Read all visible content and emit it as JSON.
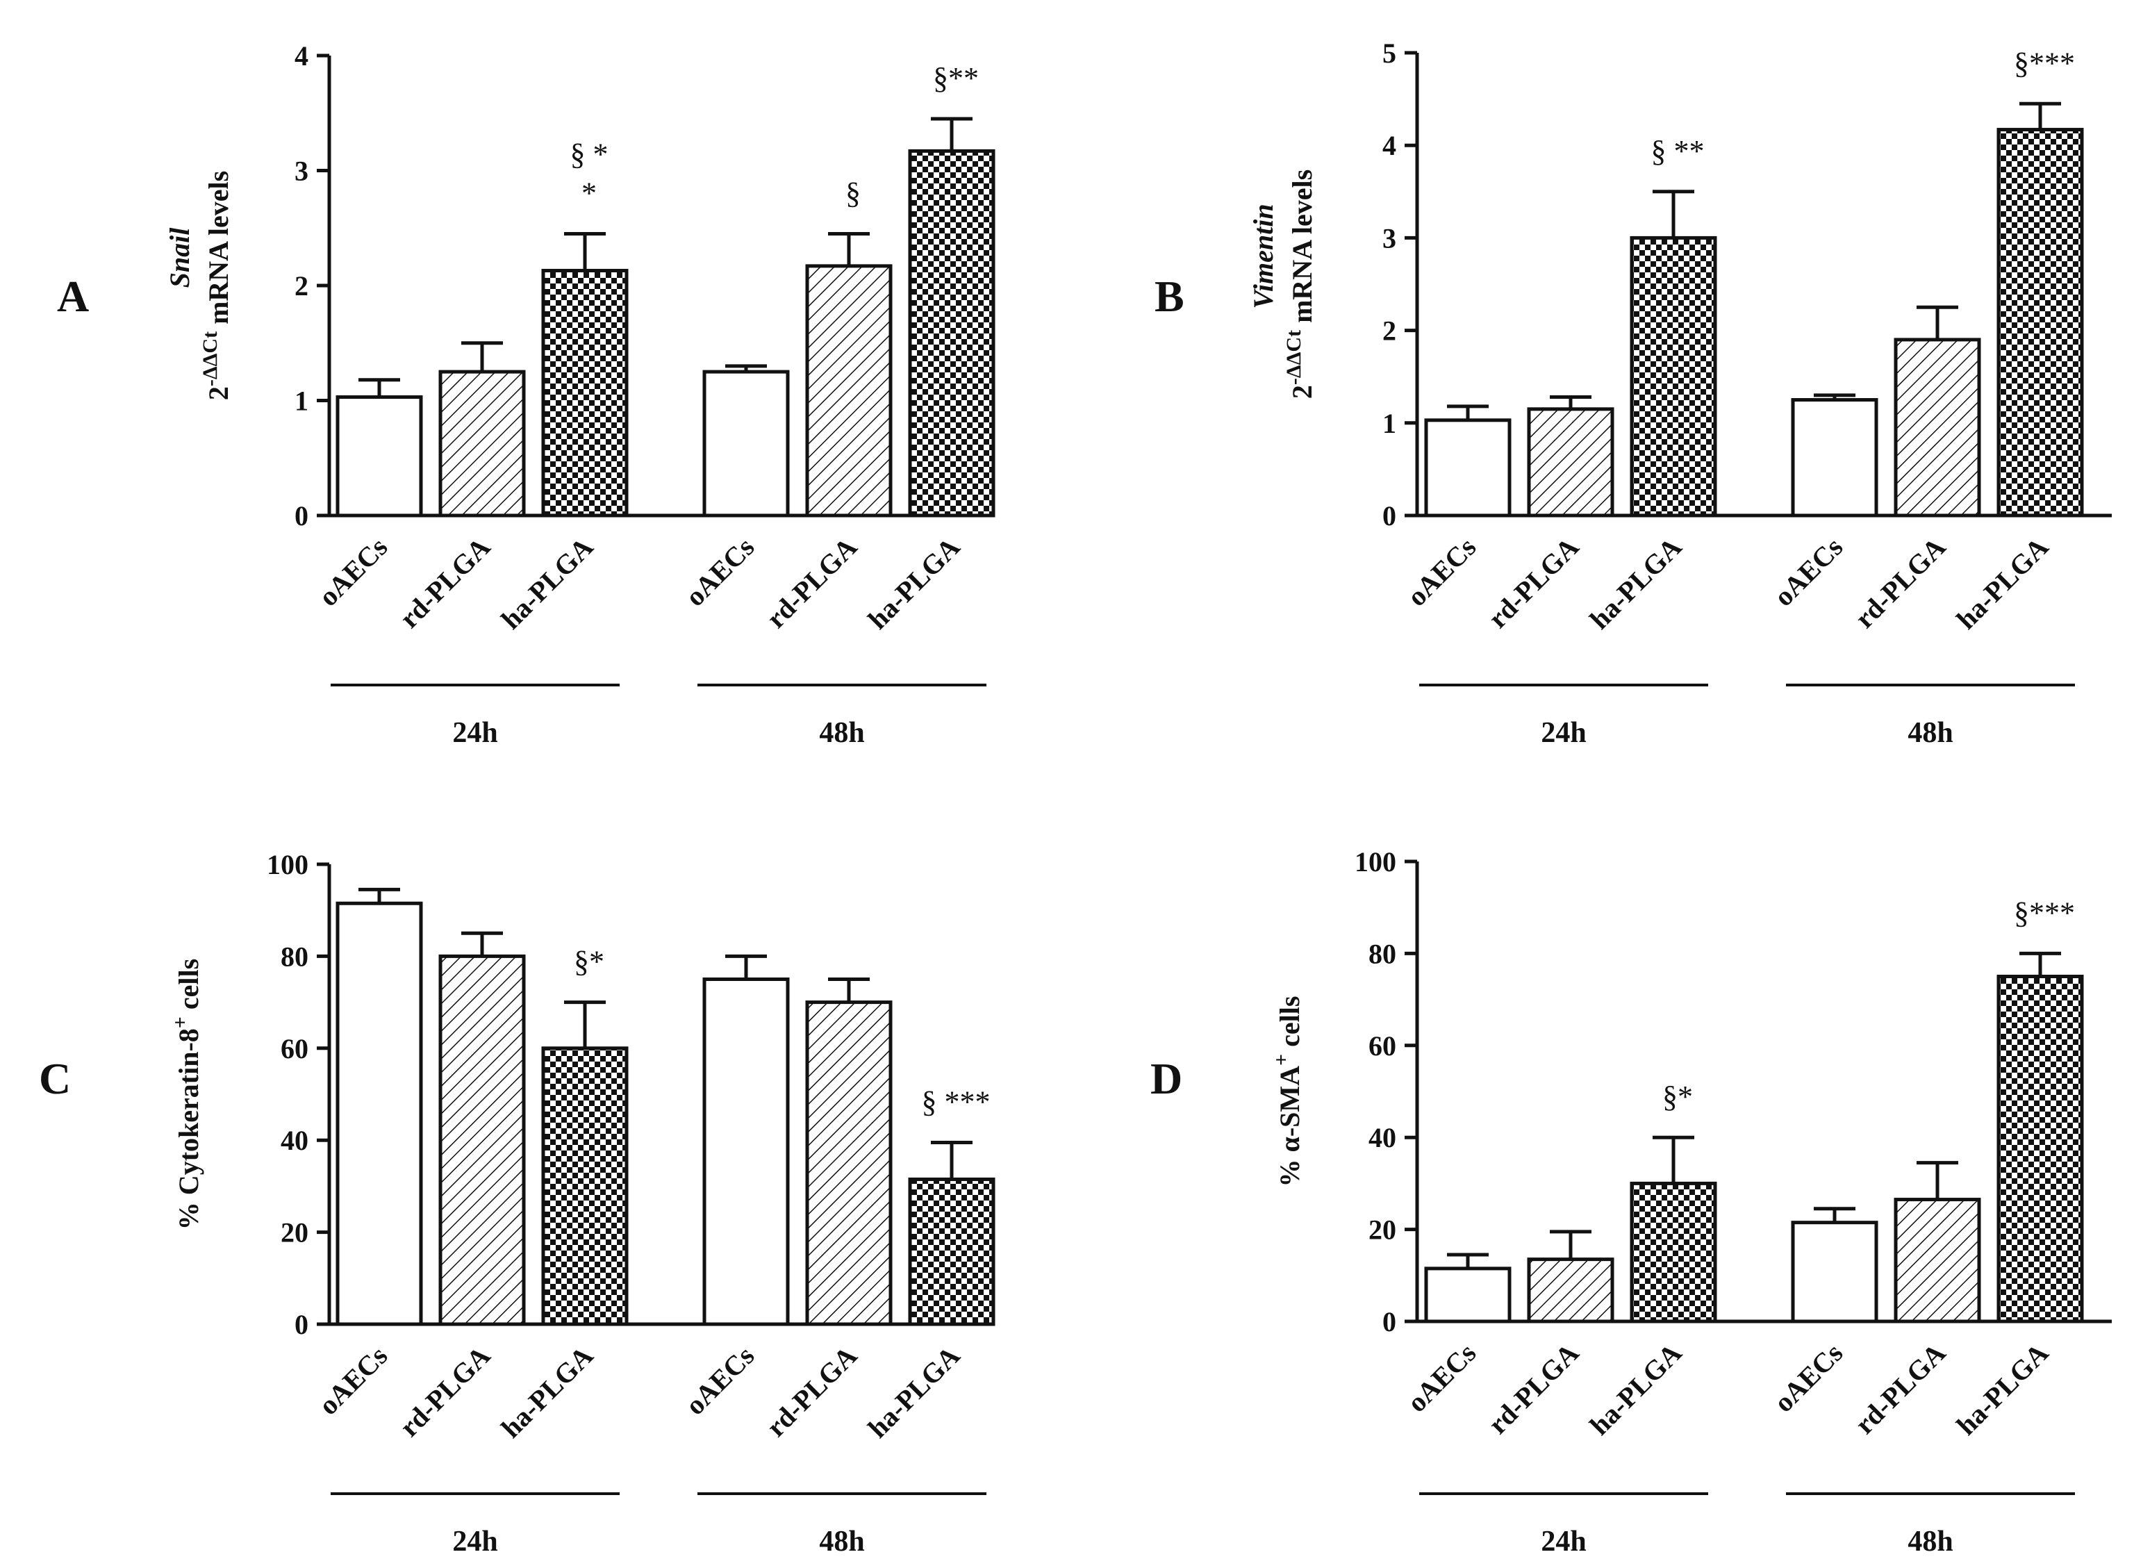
{
  "figure": {
    "background": "#ffffff",
    "bar_stroke": "#111111",
    "fill_colors": {
      "empty": "#ffffff",
      "ink": "#111111"
    }
  },
  "chart_data": [
    {
      "id": "A",
      "panel_label": "A",
      "type": "bar",
      "ylabel_prefix": "2",
      "ylabel_sup": "-ΔΔCt",
      "ylabel_gene": "Snail",
      "ylabel_text": "mRNA levels",
      "ylim": [
        0,
        4
      ],
      "yticks": [
        0,
        1,
        2,
        3,
        4
      ],
      "categories": [
        "oAECs",
        "rd-PLGA",
        "ha-PLGA",
        "oAECs",
        "rd-PLGA",
        "ha-PLGA"
      ],
      "patterns": [
        "empty",
        "hatch",
        "check",
        "empty",
        "hatch",
        "check"
      ],
      "values": [
        1.03,
        1.25,
        2.13,
        1.25,
        2.17,
        3.17
      ],
      "errors": [
        0.15,
        0.25,
        0.32,
        0.05,
        0.28,
        0.28
      ],
      "annotations": [
        "",
        "",
        "§ *\n*",
        "",
        "§",
        "§**"
      ],
      "groups": [
        {
          "label": "24h"
        },
        {
          "label": "48h"
        }
      ]
    },
    {
      "id": "B",
      "panel_label": "B",
      "type": "bar",
      "ylabel_prefix": "2",
      "ylabel_sup": "-ΔΔCt",
      "ylabel_gene": "Vimentin",
      "ylabel_text": "mRNA levels",
      "ylim": [
        0,
        5
      ],
      "yticks": [
        0,
        1,
        2,
        3,
        4,
        5
      ],
      "categories": [
        "oAECs",
        "rd-PLGA",
        "ha-PLGA",
        "oAECs",
        "rd-PLGA",
        "ha-PLGA"
      ],
      "patterns": [
        "empty",
        "hatch",
        "check",
        "empty",
        "hatch",
        "check"
      ],
      "values": [
        1.03,
        1.15,
        3.0,
        1.25,
        1.9,
        4.17
      ],
      "errors": [
        0.15,
        0.13,
        0.5,
        0.05,
        0.35,
        0.28
      ],
      "annotations": [
        "",
        "",
        "§ **",
        "",
        "",
        "§***"
      ],
      "groups": [
        {
          "label": "24h"
        },
        {
          "label": "48h"
        }
      ]
    },
    {
      "id": "C",
      "panel_label": "C",
      "type": "bar",
      "ylabel_full": "% Cytokeratin-8",
      "ylabel_sup": "+",
      "ylabel_tail": " cells",
      "ylim": [
        0,
        100
      ],
      "yticks": [
        0,
        20,
        40,
        60,
        80,
        100
      ],
      "categories": [
        "oAECs",
        "rd-PLGA",
        "ha-PLGA",
        "oAECs",
        "rd-PLGA",
        "ha-PLGA"
      ],
      "patterns": [
        "empty",
        "hatch",
        "check",
        "empty",
        "hatch",
        "check"
      ],
      "values": [
        91.5,
        80,
        60,
        75,
        70,
        31.5
      ],
      "errors": [
        3,
        5,
        10,
        5,
        5,
        8
      ],
      "annotations": [
        "",
        "",
        "§*",
        "",
        "",
        "§ ***"
      ],
      "groups": [
        {
          "label": "24h"
        },
        {
          "label": "48h"
        }
      ]
    },
    {
      "id": "D",
      "panel_label": "D",
      "type": "bar",
      "ylabel_full": "% α-SMA",
      "ylabel_sup": "+",
      "ylabel_tail": " cells",
      "ylim": [
        0,
        100
      ],
      "yticks": [
        0,
        20,
        40,
        60,
        80,
        100
      ],
      "categories": [
        "oAECs",
        "rd-PLGA",
        "ha-PLGA",
        "oAECs",
        "rd-PLGA",
        "ha-PLGA"
      ],
      "patterns": [
        "empty",
        "hatch",
        "check",
        "empty",
        "hatch",
        "check"
      ],
      "values": [
        11.5,
        13.5,
        30,
        21.5,
        26.5,
        75
      ],
      "errors": [
        3,
        6,
        10,
        3,
        8,
        5
      ],
      "annotations": [
        "",
        "",
        "§*",
        "",
        "",
        "§***"
      ],
      "groups": [
        {
          "label": "24h"
        },
        {
          "label": "48h"
        }
      ]
    }
  ]
}
